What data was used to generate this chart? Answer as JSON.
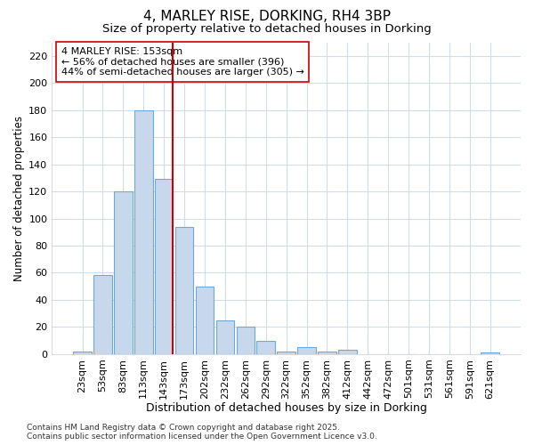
{
  "title": "4, MARLEY RISE, DORKING, RH4 3BP",
  "subtitle": "Size of property relative to detached houses in Dorking",
  "xlabel": "Distribution of detached houses by size in Dorking",
  "ylabel": "Number of detached properties",
  "footer": "Contains HM Land Registry data © Crown copyright and database right 2025.\nContains public sector information licensed under the Open Government Licence v3.0.",
  "bins": [
    "23sqm",
    "53sqm",
    "83sqm",
    "113sqm",
    "143sqm",
    "173sqm",
    "202sqm",
    "232sqm",
    "262sqm",
    "292sqm",
    "322sqm",
    "352sqm",
    "382sqm",
    "412sqm",
    "442sqm",
    "472sqm",
    "501sqm",
    "531sqm",
    "561sqm",
    "591sqm",
    "621sqm"
  ],
  "values": [
    2,
    58,
    120,
    180,
    129,
    94,
    50,
    25,
    20,
    10,
    2,
    5,
    2,
    3,
    0,
    0,
    0,
    0,
    0,
    0,
    1
  ],
  "bar_color": "#c8d8ec",
  "bar_edge_color": "#6baad8",
  "annotation_text": "4 MARLEY RISE: 153sqm\n← 56% of detached houses are smaller (396)\n44% of semi-detached houses are larger (305) →",
  "annotation_box_color": "#ffffff",
  "annotation_box_edge": "#cc0000",
  "vline_color": "#cc0000",
  "vline_bin_index": 4,
  "ylim": [
    0,
    230
  ],
  "yticks": [
    0,
    20,
    40,
    60,
    80,
    100,
    120,
    140,
    160,
    180,
    200,
    220
  ],
  "background_color": "#ffffff",
  "plot_bg_color": "#ffffff",
  "grid_color": "#d0dce8",
  "title_fontsize": 11,
  "subtitle_fontsize": 9.5,
  "xlabel_fontsize": 9,
  "ylabel_fontsize": 8.5,
  "tick_fontsize": 8,
  "annotation_fontsize": 8,
  "footer_fontsize": 6.5
}
